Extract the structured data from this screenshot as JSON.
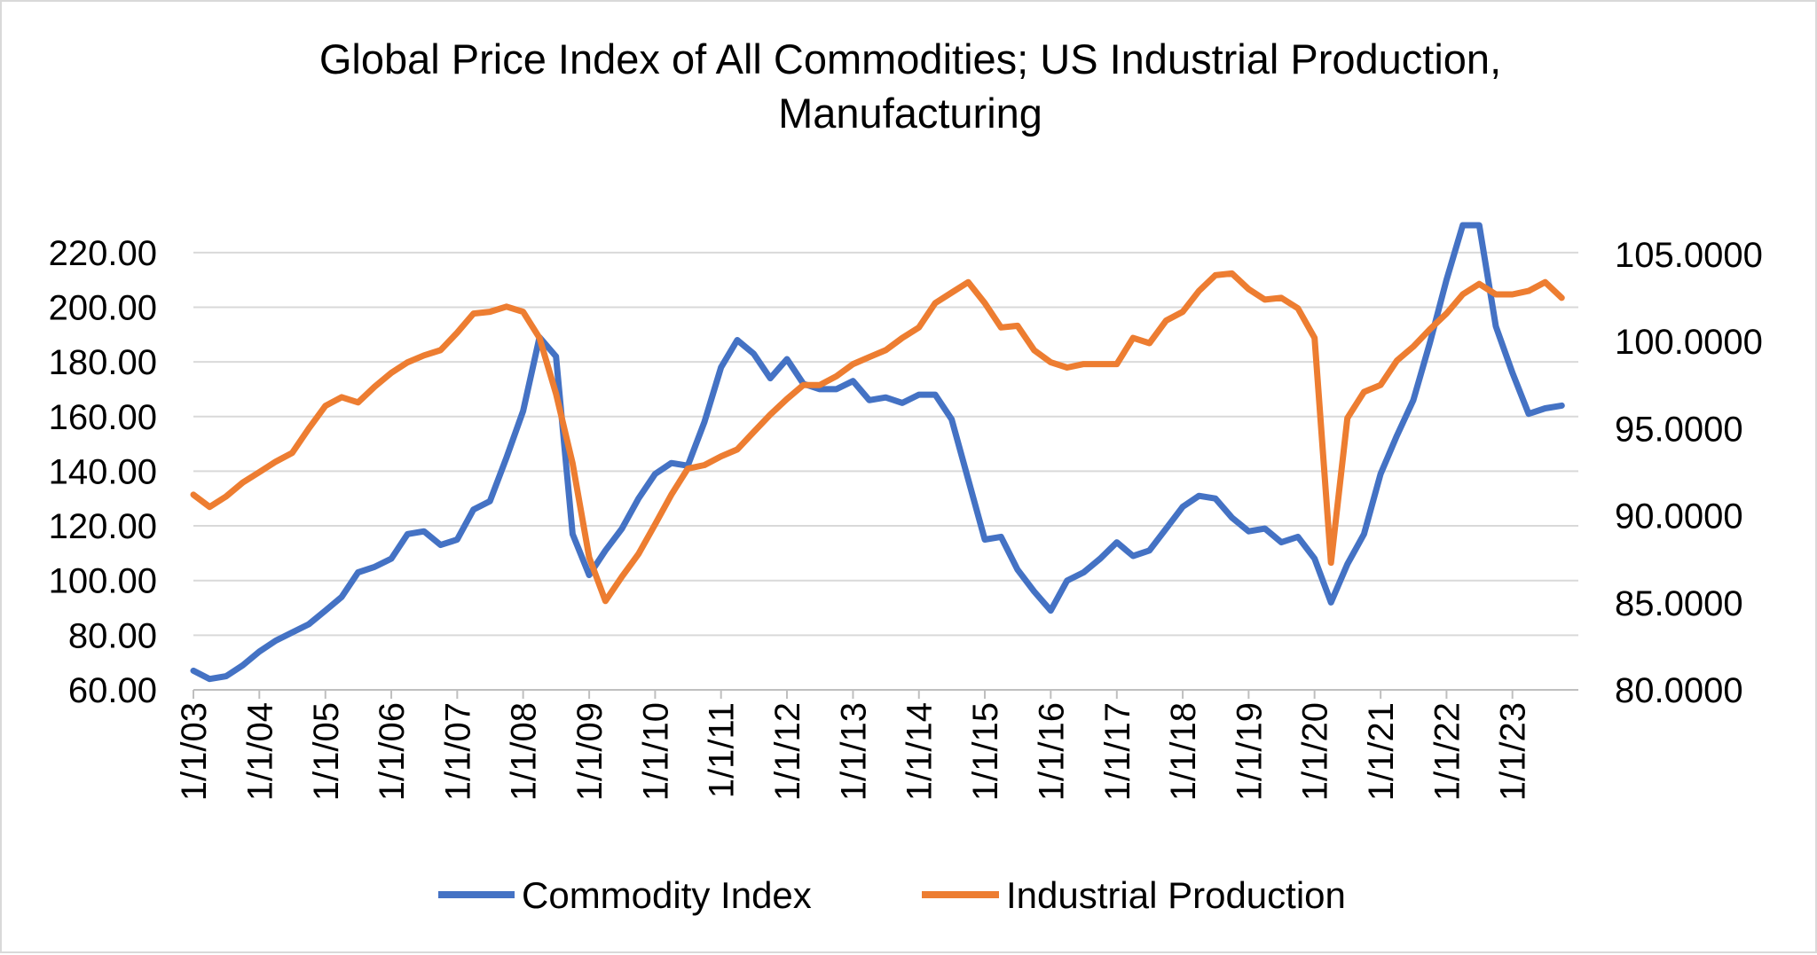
{
  "chart_data": {
    "type": "line",
    "title": "Global Price Index of All Commodities; US Industrial Production, Manufacturing",
    "title_lines": [
      "Global Price Index of All Commodities; US Industrial Production,",
      "Manufacturing"
    ],
    "x": [
      "2003-01-01",
      "2003-04-01",
      "2003-07-01",
      "2003-10-01",
      "2004-01-01",
      "2004-04-01",
      "2004-07-01",
      "2004-10-01",
      "2005-01-01",
      "2005-04-01",
      "2005-07-01",
      "2005-10-01",
      "2006-01-01",
      "2006-04-01",
      "2006-07-01",
      "2006-10-01",
      "2007-01-01",
      "2007-04-01",
      "2007-07-01",
      "2007-10-01",
      "2008-01-01",
      "2008-04-01",
      "2008-07-01",
      "2008-10-01",
      "2009-01-01",
      "2009-04-01",
      "2009-07-01",
      "2009-10-01",
      "2010-01-01",
      "2010-04-01",
      "2010-07-01",
      "2010-10-01",
      "2011-01-01",
      "2011-04-01",
      "2011-07-01",
      "2011-10-01",
      "2012-01-01",
      "2012-04-01",
      "2012-07-01",
      "2012-10-01",
      "2013-01-01",
      "2013-04-01",
      "2013-07-01",
      "2013-10-01",
      "2014-01-01",
      "2014-04-01",
      "2014-07-01",
      "2014-10-01",
      "2015-01-01",
      "2015-04-01",
      "2015-07-01",
      "2015-10-01",
      "2016-01-01",
      "2016-04-01",
      "2016-07-01",
      "2016-10-01",
      "2017-01-01",
      "2017-04-01",
      "2017-07-01",
      "2017-10-01",
      "2018-01-01",
      "2018-04-01",
      "2018-07-01",
      "2018-10-01",
      "2019-01-01",
      "2019-04-01",
      "2019-07-01",
      "2019-10-01",
      "2020-01-01",
      "2020-04-01",
      "2020-07-01",
      "2020-10-01",
      "2021-01-01",
      "2021-04-01",
      "2021-07-01",
      "2021-10-01",
      "2022-01-01",
      "2022-04-01",
      "2022-07-01",
      "2022-10-01",
      "2023-01-01",
      "2023-04-01",
      "2023-07-01",
      "2023-10-01"
    ],
    "x_tick_labels": [
      "1/1/03",
      "1/1/04",
      "1/1/05",
      "1/1/06",
      "1/1/07",
      "1/1/08",
      "1/1/09",
      "1/1/10",
      "1/1/11",
      "1/1/12",
      "1/1/13",
      "1/1/14",
      "1/1/15",
      "1/1/16",
      "1/1/17",
      "1/1/18",
      "1/1/19",
      "1/1/20",
      "1/1/21",
      "1/1/22",
      "1/1/23"
    ],
    "xlim": [
      "2003-01-01",
      "2024-01-01"
    ],
    "y_left": {
      "lim": [
        60,
        230
      ],
      "ticks": [
        60,
        80,
        100,
        120,
        140,
        160,
        180,
        200,
        220
      ],
      "tick_labels": [
        "60.00",
        "80.00",
        "100.00",
        "120.00",
        "140.00",
        "160.00",
        "180.00",
        "200.00",
        "220.00"
      ]
    },
    "y_right": {
      "lim": [
        80,
        106.67
      ],
      "ticks": [
        80,
        85,
        90,
        95,
        100,
        105
      ],
      "tick_labels": [
        "80.0000",
        "85.0000",
        "90.0000",
        "95.0000",
        "100.0000",
        "105.0000"
      ]
    },
    "gridlines": "horizontal",
    "legend_position": "bottom",
    "series": [
      {
        "name": "Commodity Index",
        "axis": "left",
        "color": "#4472c4",
        "values": [
          67,
          64,
          65,
          69,
          74,
          78,
          81,
          84,
          89,
          94,
          103,
          105,
          108,
          117,
          118,
          113,
          115,
          126,
          129,
          145,
          162,
          189,
          182,
          117,
          102,
          111,
          119,
          130,
          139,
          143,
          142,
          158,
          178,
          188,
          183,
          174,
          181,
          172,
          170,
          170,
          173,
          166,
          167,
          165,
          168,
          168,
          159,
          137,
          115,
          116,
          104,
          96,
          89,
          100,
          103,
          108,
          114,
          109,
          111,
          119,
          127,
          131,
          130,
          123,
          118,
          119,
          114,
          116,
          108,
          92,
          106,
          117,
          139,
          153,
          166,
          187,
          210,
          230,
          230,
          193,
          176,
          161,
          163,
          164
        ]
      },
      {
        "name": "Industrial Production",
        "axis": "right",
        "color": "#ed7d31",
        "values": [
          91.2,
          90.5,
          91.1,
          91.9,
          92.5,
          93.1,
          93.6,
          95.0,
          96.3,
          96.8,
          96.5,
          97.4,
          98.2,
          98.8,
          99.2,
          99.5,
          100.5,
          101.6,
          101.7,
          102.0,
          101.7,
          100.2,
          97.0,
          93.0,
          87.6,
          85.1,
          86.5,
          87.8,
          89.5,
          91.2,
          92.7,
          92.9,
          93.4,
          93.8,
          94.8,
          95.8,
          96.7,
          97.5,
          97.5,
          98.0,
          98.7,
          99.1,
          99.5,
          100.2,
          100.8,
          102.2,
          102.8,
          103.4,
          102.2,
          100.8,
          100.9,
          99.5,
          98.8,
          98.5,
          98.7,
          98.7,
          98.7,
          100.2,
          99.9,
          101.2,
          101.7,
          102.9,
          103.8,
          103.9,
          103.0,
          102.4,
          102.5,
          101.9,
          100.2,
          87.3,
          95.6,
          97.1,
          97.5,
          98.9,
          99.7,
          100.7,
          101.6,
          102.7,
          103.3,
          102.7,
          102.7,
          102.9,
          103.4,
          102.5
        ]
      }
    ]
  }
}
